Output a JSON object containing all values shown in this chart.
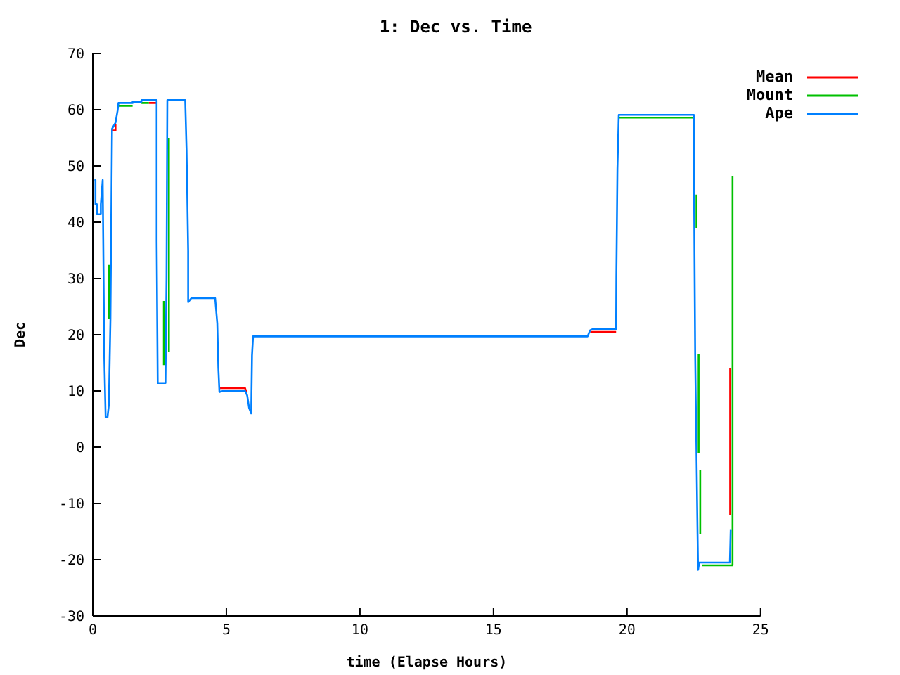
{
  "chart_data": {
    "type": "line",
    "title": "1: Dec vs. Time",
    "xlabel": "time (Elapse Hours)",
    "ylabel": "Dec",
    "xlim": [
      0,
      25
    ],
    "xticks": [
      0,
      5,
      10,
      15,
      20,
      25
    ],
    "ylim": [
      -30,
      70
    ],
    "yticks": [
      -30,
      -20,
      -10,
      0,
      10,
      20,
      30,
      40,
      50,
      60,
      70
    ],
    "legend": "top right",
    "marker": "none",
    "line_style": "solid",
    "series": [
      {
        "name": "Mean",
        "color": "#ff0000",
        "x": [
          0.7,
          0.85,
          0.85,
          1.0,
          2.1,
          2.39,
          3.0,
          4.74,
          5.7,
          5.76,
          10,
          18.62,
          19.59,
          23,
          23.86,
          23.86
        ],
        "values": [
          56.3,
          56.3,
          57.5,
          null,
          61.2,
          61.2,
          null,
          10.5,
          10.5,
          9.6,
          null,
          20.5,
          20.5,
          null,
          -12,
          14.1
        ]
      },
      {
        "name": "Mount",
        "color": "#00c000",
        "x": [
          0.61,
          0.61,
          0.8,
          0.96,
          1.49,
          1.6,
          1.82,
          2.1,
          2.5,
          2.66,
          2.66,
          2.75,
          2.85,
          2.85,
          10,
          19.69,
          22.5,
          22.55,
          22.6,
          22.6,
          22.64,
          22.68,
          22.68,
          22.71,
          22.74,
          22.74,
          22.76,
          22.8,
          23.95,
          23.95
        ],
        "values": [
          22.8,
          32.4,
          null,
          60.7,
          60.7,
          null,
          61.2,
          61.2,
          null,
          14.6,
          26,
          null,
          17,
          55,
          null,
          58.6,
          58.6,
          null,
          44.9,
          39,
          null,
          16.6,
          -1,
          null,
          -4,
          -15.5,
          null,
          -21,
          -21,
          48.2
        ]
      },
      {
        "name": "Ape",
        "color": "#0080ff",
        "x": [
          0.06,
          0.1,
          0.1,
          0.15,
          0.15,
          0.3,
          0.3,
          0.37,
          0.39,
          0.43,
          0.48,
          0.55,
          0.6,
          0.66,
          0.72,
          0.85,
          0.93,
          0.96,
          1.49,
          1.49,
          1.82,
          1.82,
          2.39,
          2.39,
          2.43,
          2.72,
          2.76,
          2.79,
          3.46,
          3.51,
          3.57,
          3.57,
          3.69,
          4.58,
          4.66,
          4.7,
          4.74,
          4.88,
          5.7,
          5.78,
          5.85,
          5.93,
          5.96,
          6.0,
          18.52,
          18.62,
          18.72,
          19.59,
          19.6,
          19.64,
          19.69,
          22.5,
          22.51,
          22.55,
          22.64,
          22.66,
          22.7,
          23.85,
          23.88
        ],
        "values": [
          47.5,
          47.5,
          43.2,
          43.2,
          41.4,
          41.4,
          43.2,
          47.5,
          37,
          15.8,
          5.3,
          5.3,
          7.5,
          22.8,
          56.6,
          57.7,
          59.9,
          61.2,
          61.2,
          61.4,
          61.4,
          61.7,
          61.7,
          36.6,
          11.4,
          11.4,
          30,
          61.7,
          61.7,
          52.8,
          34.9,
          25.8,
          26.5,
          26.5,
          22,
          14.1,
          9.8,
          10,
          10,
          9.2,
          7,
          6,
          16.3,
          19.7,
          19.7,
          20.8,
          21,
          21,
          30.3,
          49.5,
          59.1,
          59.1,
          44.9,
          16.6,
          -15.5,
          -21.8,
          -20.5,
          -20.5,
          -14.7
        ]
      }
    ]
  }
}
